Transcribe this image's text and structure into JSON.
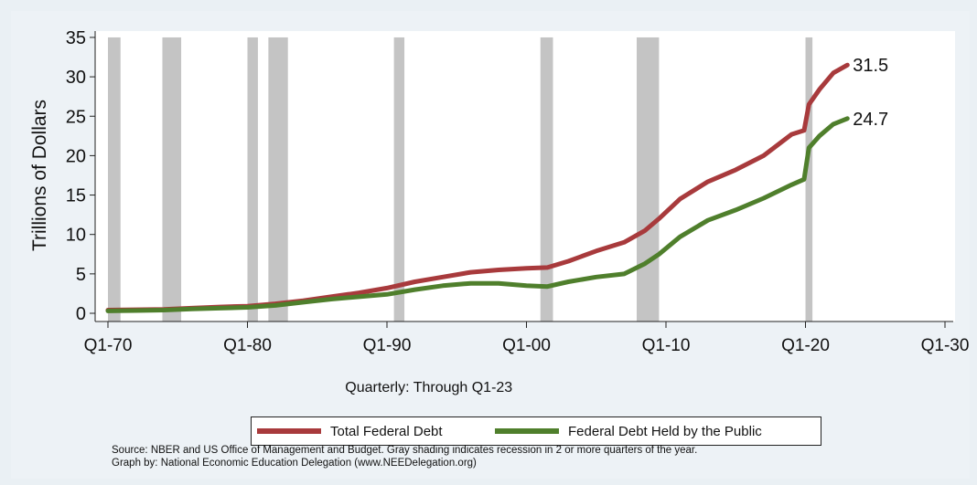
{
  "chart_data": {
    "type": "line",
    "ylabel": "Trillions of Dollars",
    "xlabel": "Quarterly: Through Q1-23",
    "xlim": [
      1970,
      2030
    ],
    "ylim": [
      0,
      35
    ],
    "y_ticks": [
      0,
      5,
      10,
      15,
      20,
      25,
      30,
      35
    ],
    "x_ticks": [
      {
        "value": 1970,
        "label": "Q1-70"
      },
      {
        "value": 1980,
        "label": "Q1-80"
      },
      {
        "value": 1990,
        "label": "Q1-90"
      },
      {
        "value": 2000,
        "label": "Q1-00"
      },
      {
        "value": 2010,
        "label": "Q1-10"
      },
      {
        "value": 2020,
        "label": "Q1-20"
      },
      {
        "value": 2030,
        "label": "Q1-30"
      }
    ],
    "grid": false,
    "legend_position": "bottom",
    "recessions": [
      [
        1970.0,
        1970.9
      ],
      [
        1973.9,
        1975.25
      ],
      [
        1980.0,
        1980.75
      ],
      [
        1981.5,
        1982.9
      ],
      [
        1990.5,
        1991.25
      ],
      [
        2001.0,
        2001.9
      ],
      [
        2007.9,
        2009.5
      ],
      [
        2020.0,
        2020.5
      ]
    ],
    "series": [
      {
        "name": "Total Federal Debt",
        "color": "#a83a3c",
        "end_label": "31.5",
        "x": [
          1970,
          1972,
          1974,
          1976,
          1978,
          1980,
          1982,
          1984,
          1986,
          1988,
          1990,
          1992,
          1994,
          1996,
          1998,
          2000,
          2001.5,
          2003,
          2005,
          2007,
          2008.5,
          2009.5,
          2011,
          2013,
          2015,
          2017,
          2019,
          2019.9,
          2020.25,
          2021,
          2022,
          2023
        ],
        "y": [
          0.4,
          0.45,
          0.5,
          0.65,
          0.8,
          0.9,
          1.2,
          1.6,
          2.1,
          2.6,
          3.2,
          4.0,
          4.6,
          5.2,
          5.5,
          5.7,
          5.8,
          6.6,
          7.9,
          9.0,
          10.5,
          12.0,
          14.5,
          16.7,
          18.2,
          20.0,
          22.7,
          23.2,
          26.5,
          28.4,
          30.5,
          31.5
        ]
      },
      {
        "name": "Federal Debt Held by the Public",
        "color": "#4f7f2c",
        "end_label": "24.7",
        "x": [
          1970,
          1972,
          1974,
          1976,
          1978,
          1980,
          1982,
          1984,
          1986,
          1988,
          1990,
          1992,
          1994,
          1996,
          1998,
          2000,
          2001.5,
          2003,
          2005,
          2007,
          2008.5,
          2009.5,
          2011,
          2013,
          2015,
          2017,
          2019,
          2019.9,
          2020.25,
          2021,
          2022,
          2023
        ],
        "y": [
          0.3,
          0.35,
          0.4,
          0.55,
          0.65,
          0.75,
          1.0,
          1.4,
          1.8,
          2.1,
          2.4,
          3.0,
          3.5,
          3.8,
          3.8,
          3.5,
          3.4,
          4.0,
          4.6,
          5.0,
          6.3,
          7.5,
          9.7,
          11.8,
          13.1,
          14.6,
          16.3,
          17.0,
          21.0,
          22.5,
          24.0,
          24.7
        ]
      }
    ]
  },
  "source_note": "Source: NBER and US Office of Management and Budget. Gray shading indicates recession in 2 or more quarters of the year.",
  "graph_note": "Graph by: National Economic Education Delegation (www.NEEDelegation.org)"
}
